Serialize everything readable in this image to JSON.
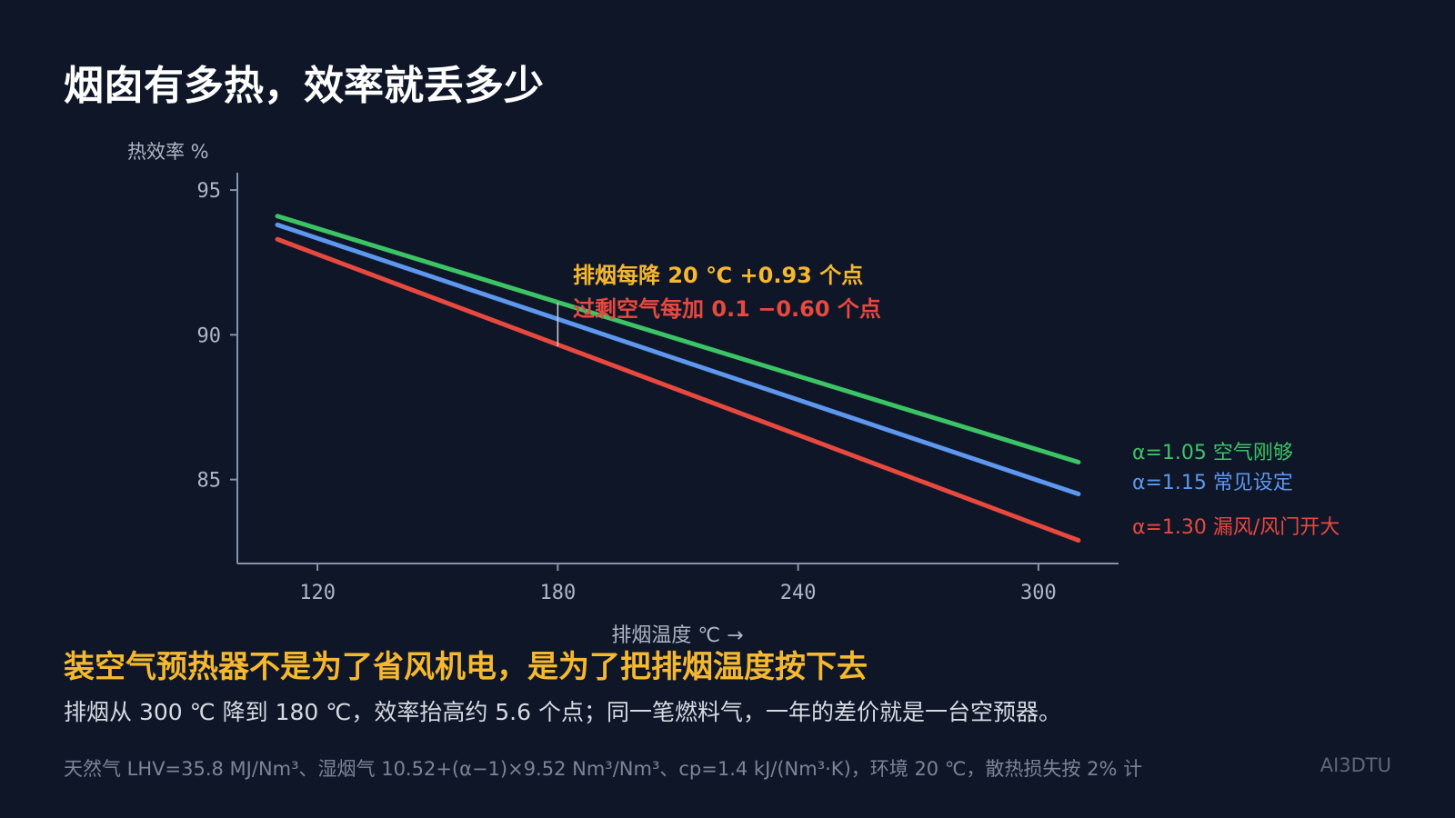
{
  "page": {
    "title": "烟囱有多热，效率就丢多少",
    "headline": "装空气预热器不是为了省风机电，是为了把排烟温度按下去",
    "subtext": "排烟从 300 ℃ 降到 180 ℃，效率抬高约 5.6 个点；同一笔燃料气，一年的差价就是一台空预器。",
    "footnote": "天然气 LHV=35.8 MJ/Nm³、湿烟气 10.52+(α−1)×9.52 Nm³/Nm³、cp=1.4 kJ/(Nm³·K)，环境 20 ℃，散热损失按 2% 计",
    "brand": "AI3DTU"
  },
  "colors": {
    "background": "#0e1628",
    "axis": "#8793a8",
    "tick_label": "#aeb6c4",
    "green": "#3cc464",
    "blue": "#5d97ee",
    "red": "#e8493f",
    "accent": "#f5b82e"
  },
  "chart_data": {
    "type": "line",
    "ylabel": "热效率 %",
    "xlabel": "排烟温度 ℃ →",
    "xlim": [
      100,
      320
    ],
    "ylim": [
      82.1,
      95.6
    ],
    "xticks": [
      120,
      180,
      240,
      300
    ],
    "yticks": [
      85,
      90,
      95
    ],
    "series": [
      {
        "name": "α=1.05  空气刚够",
        "color": "#3cc464",
        "x": [
          110,
          310
        ],
        "y": [
          94.1,
          85.6
        ]
      },
      {
        "name": "α=1.15  常见设定",
        "color": "#5d97ee",
        "x": [
          110,
          310
        ],
        "y": [
          93.8,
          84.5
        ]
      },
      {
        "name": "α=1.30  漏风/风门开大",
        "color": "#e8493f",
        "x": [
          110,
          310
        ],
        "y": [
          93.3,
          82.9
        ]
      }
    ],
    "annotations": [
      {
        "text": "排烟每降 20 ℃  +0.93 个点",
        "color": "#f5b82e"
      },
      {
        "text": "过剩空气每加 0.1  −0.60 个点",
        "color": "#e8493f"
      }
    ],
    "marker": {
      "x": 180,
      "y_from": 89.6,
      "y_to": 91.1
    }
  }
}
